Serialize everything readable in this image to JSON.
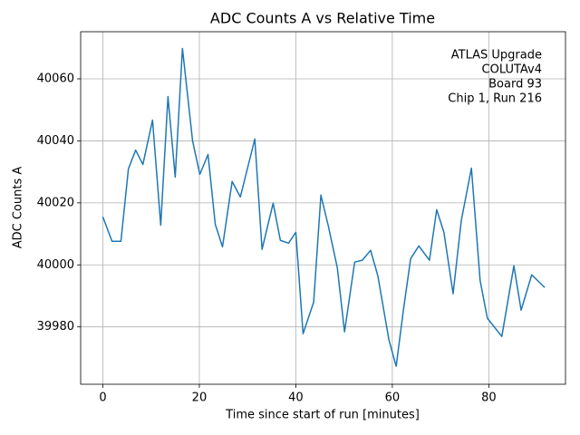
{
  "chart_data": {
    "type": "line",
    "title": "ADC Counts A vs Relative Time",
    "x_label": "Time since start of run [minutes]",
    "y_label": "ADC Counts A",
    "annotation": [
      "ATLAS Upgrade",
      "COLUTAv4",
      "Board 93",
      "Chip 1, Run 216"
    ],
    "x": [
      0,
      1.9,
      3.75,
      5.3,
      6.8,
      8.3,
      10.3,
      12,
      13.5,
      15,
      16.5,
      18.6,
      20.1,
      21.8,
      23.3,
      24.8,
      26.8,
      28.5,
      31.5,
      33,
      35.3,
      36.8,
      38.5,
      40,
      41.5,
      43.7,
      45.2,
      46.7,
      48.6,
      50.1,
      52.2,
      53.8,
      55.5,
      57,
      59.3,
      60.8,
      62.3,
      63.8,
      65.5,
      67.7,
      69.2,
      70.7,
      72.6,
      74.3,
      76.4,
      78.2,
      79.7,
      82.7,
      85.2,
      86.7,
      88.9,
      91.6
    ],
    "series": [
      {
        "color": "#1f77b4",
        "values": [
          40015.5,
          40007.6,
          40007.6,
          40031,
          40037,
          40032.4,
          40046.7,
          40012.8,
          40054.3,
          40028.3,
          40069.8,
          40040,
          40029.2,
          40035.6,
          40013.1,
          40005.8,
          40026.9,
          40021.9,
          40040.6,
          40005,
          40019.9,
          40007.9,
          40007,
          40010.5,
          39977.8,
          39988,
          40022.5,
          40012.8,
          39999.1,
          39978.4,
          40000.9,
          40001.5,
          40004.7,
          39996.5,
          39975.8,
          39967.3,
          39985.4,
          40002,
          40006.1,
          40001.5,
          40017.8,
          40010.5,
          39990.7,
          40014.3,
          40031.2,
          39995,
          39982.8,
          39976.9,
          39999.7,
          39985.4,
          39996.8,
          39992.7
        ]
      }
    ],
    "xlim": [
      -4.6,
      95.9
    ],
    "ylim": [
      39961.5,
      40075.2
    ],
    "xticks": [
      0,
      20,
      40,
      60,
      80
    ],
    "yticks": [
      39980,
      40000,
      40020,
      40040,
      40060
    ],
    "grid": true
  }
}
